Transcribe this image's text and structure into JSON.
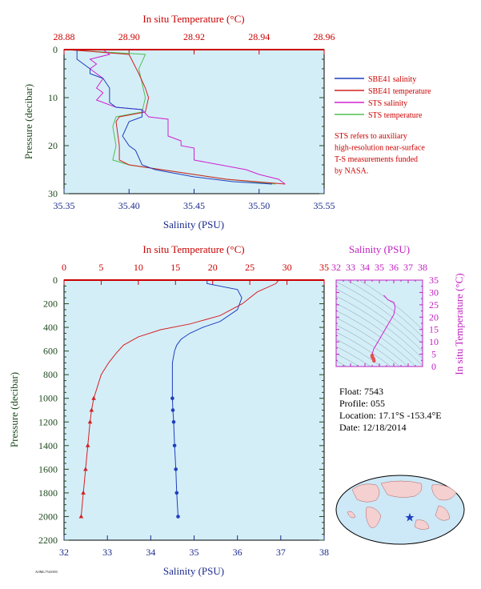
{
  "colors": {
    "temperature": "#cc0000",
    "salinity_axis": "#1a2a8a",
    "pressure_axis": "#1e4a1e",
    "sbe_salinity": "#1f3fbf",
    "sbe_temperature": "#d42020",
    "sts_salinity": "#d020d0",
    "sts_temperature": "#50c050",
    "plot_bg": "#d4eef8",
    "magenta": "#c020c0"
  },
  "top_plot": {
    "top_axis_label": "In situ Temperature (°C)",
    "bottom_axis_label": "Salinity (PSU)",
    "left_axis_label": "Pressure (decibar)",
    "temp_ticks": [
      "28.88",
      "28.90",
      "28.92",
      "28.94",
      "28.96"
    ],
    "sal_ticks": [
      "35.35",
      "35.40",
      "35.45",
      "35.50",
      "35.55"
    ],
    "pres_ticks": [
      "0",
      "10",
      "20",
      "30"
    ],
    "legend": [
      {
        "label": "SBE41 salinity",
        "color": "#1f3fbf"
      },
      {
        "label": "SBE41 temperature",
        "color": "#d42020"
      },
      {
        "label": "STS salinity",
        "color": "#d020d0"
      },
      {
        "label": "STS temperature",
        "color": "#50c050"
      }
    ],
    "note": [
      "STS refers to auxiliary",
      "high-resolution near-surface",
      "T-S measurements funded",
      "by NASA."
    ]
  },
  "bottom_plot": {
    "top_axis_label": "In situ Temperature (°C)",
    "bottom_axis_label": "Salinity (PSU)",
    "left_axis_label": "Pressure (decibar)",
    "temp_ticks": [
      "0",
      "5",
      "10",
      "15",
      "20",
      "25",
      "30",
      "35"
    ],
    "sal_ticks": [
      "32",
      "33",
      "34",
      "35",
      "36",
      "37",
      "38"
    ],
    "pres_ticks": [
      "0",
      "200",
      "400",
      "600",
      "800",
      "1000",
      "1200",
      "1400",
      "1600",
      "1800",
      "2000",
      "2200"
    ]
  },
  "ts_plot": {
    "top_axis_label": "Salinity (PSU)",
    "right_axis_label": "In situ Temperature (°C)",
    "sal_ticks": [
      "32",
      "33",
      "34",
      "35",
      "36",
      "37",
      "38"
    ],
    "temp_ticks": [
      "0",
      "5",
      "10",
      "15",
      "20",
      "25",
      "30",
      "35"
    ]
  },
  "info": {
    "float": "Float:  7543",
    "profile": "Profile:  055",
    "location": "Location:  17.1°S  -153.4°E",
    "date": "Date:  12/18/2014"
  },
  "footer_code": "AOML/7543/055",
  "chart_data": [
    {
      "type": "line",
      "title": "",
      "xlabel": "Salinity (PSU)",
      "x2label": "In situ Temperature (°C)",
      "ylabel": "Pressure (decibar)",
      "xlim": [
        35.35,
        35.55
      ],
      "x2lim": [
        28.88,
        28.96
      ],
      "ylim": [
        30,
        0
      ],
      "series": [
        {
          "name": "SBE41 salinity",
          "axis": "salinity",
          "points": [
            [
              35.36,
              0
            ],
            [
              35.36,
              2
            ],
            [
              35.37,
              4
            ],
            [
              35.37,
              5
            ],
            [
              35.38,
              6
            ],
            [
              35.385,
              8
            ],
            [
              35.385,
              11
            ],
            [
              35.39,
              12
            ],
            [
              35.41,
              12.5
            ],
            [
              35.41,
              14
            ],
            [
              35.4,
              15
            ],
            [
              35.395,
              18
            ],
            [
              35.4,
              20
            ],
            [
              35.405,
              21
            ],
            [
              35.41,
              24
            ],
            [
              35.42,
              25
            ],
            [
              35.45,
              26.5
            ],
            [
              35.48,
              27.5
            ],
            [
              35.51,
              28
            ]
          ]
        },
        {
          "name": "SBE41 temperature",
          "axis": "temperature",
          "points": [
            [
              28.881,
              0
            ],
            [
              28.9,
              1
            ],
            [
              28.903,
              5
            ],
            [
              28.905,
              8
            ],
            [
              28.906,
              10
            ],
            [
              28.905,
              13
            ],
            [
              28.897,
              14
            ],
            [
              28.896,
              15
            ],
            [
              28.897,
              20
            ],
            [
              28.897,
              23
            ],
            [
              28.9,
              24
            ],
            [
              28.91,
              25
            ],
            [
              28.93,
              27
            ],
            [
              28.948,
              28
            ]
          ]
        },
        {
          "name": "STS salinity",
          "axis": "salinity",
          "points": [
            [
              35.38,
              0
            ],
            [
              35.385,
              1
            ],
            [
              35.37,
              2
            ],
            [
              35.375,
              3
            ],
            [
              35.37,
              4
            ],
            [
              35.38,
              6
            ],
            [
              35.375,
              8
            ],
            [
              35.38,
              9
            ],
            [
              35.375,
              10.5
            ],
            [
              35.38,
              11
            ],
            [
              35.385,
              11.5
            ],
            [
              35.39,
              12
            ],
            [
              35.41,
              12.5
            ],
            [
              35.415,
              14
            ],
            [
              35.43,
              14.5
            ],
            [
              35.43,
              18
            ],
            [
              35.44,
              19
            ],
            [
              35.44,
              20
            ],
            [
              35.45,
              20.5
            ],
            [
              35.45,
              23
            ],
            [
              35.47,
              24
            ],
            [
              35.49,
              25
            ],
            [
              35.5,
              26
            ],
            [
              35.515,
              27
            ],
            [
              35.52,
              28
            ]
          ]
        },
        {
          "name": "STS temperature",
          "axis": "temperature",
          "points": [
            [
              28.88,
              0
            ],
            [
              28.905,
              1
            ],
            [
              28.903,
              4
            ],
            [
              28.904,
              7
            ],
            [
              28.905,
              10
            ],
            [
              28.904,
              13
            ],
            [
              28.896,
              14
            ],
            [
              28.895,
              16
            ],
            [
              28.896,
              20
            ],
            [
              28.895,
              23
            ],
            [
              28.9,
              24
            ],
            [
              28.91,
              25
            ],
            [
              28.93,
              27
            ],
            [
              28.945,
              28
            ]
          ]
        }
      ]
    },
    {
      "type": "line",
      "title": "",
      "xlabel": "Salinity (PSU)",
      "x2label": "In situ Temperature (°C)",
      "ylabel": "Pressure (decibar)",
      "xlim": [
        32,
        38
      ],
      "x2lim": [
        0,
        35
      ],
      "ylim": [
        2200,
        0
      ],
      "series": [
        {
          "name": "",
          "axis": "salinity",
          "points": [
            [
              35.3,
              0
            ],
            [
              35.3,
              30
            ],
            [
              36.0,
              80
            ],
            [
              36.1,
              150
            ],
            [
              36.0,
              250
            ],
            [
              35.6,
              350
            ],
            [
              35.2,
              400
            ],
            [
              34.9,
              450
            ],
            [
              34.7,
              500
            ],
            [
              34.6,
              550
            ],
            [
              34.55,
              600
            ],
            [
              34.5,
              700
            ],
            [
              34.5,
              800
            ],
            [
              34.5,
              900
            ],
            [
              34.5,
              1000
            ],
            [
              34.51,
              1100
            ],
            [
              34.53,
              1200
            ],
            [
              34.55,
              1400
            ],
            [
              34.58,
              1600
            ],
            [
              34.6,
              1800
            ],
            [
              34.63,
              2000
            ]
          ]
        },
        {
          "name": "",
          "axis": "temperature",
          "points": [
            [
              28.9,
              0
            ],
            [
              28.5,
              30
            ],
            [
              26,
              100
            ],
            [
              24,
              200
            ],
            [
              21,
              300
            ],
            [
              17,
              370
            ],
            [
              13,
              420
            ],
            [
              10,
              480
            ],
            [
              8,
              550
            ],
            [
              7,
              620
            ],
            [
              6,
              700
            ],
            [
              5,
              800
            ],
            [
              4.5,
              900
            ],
            [
              4.0,
              1000
            ],
            [
              3.7,
              1100
            ],
            [
              3.5,
              1200
            ],
            [
              3.2,
              1400
            ],
            [
              2.9,
              1600
            ],
            [
              2.6,
              1800
            ],
            [
              2.3,
              2000
            ]
          ]
        }
      ],
      "markers_from_pressure": 1000
    },
    {
      "type": "scatter",
      "title": "",
      "xlabel": "Salinity (PSU)",
      "ylabel": "In situ Temperature (°C)",
      "xlim": [
        32,
        38
      ],
      "ylim": [
        0,
        35
      ],
      "points": [
        [
          35.3,
          28.9
        ],
        [
          35.6,
          27
        ],
        [
          36.0,
          26
        ],
        [
          36.1,
          24
        ],
        [
          36.0,
          21
        ],
        [
          35.6,
          17
        ],
        [
          35.2,
          13
        ],
        [
          34.9,
          10
        ],
        [
          34.7,
          8
        ],
        [
          34.6,
          7
        ],
        [
          34.55,
          6
        ],
        [
          34.5,
          5
        ],
        [
          34.5,
          4.5
        ],
        [
          34.5,
          4
        ],
        [
          34.55,
          3.5
        ],
        [
          34.6,
          3
        ],
        [
          34.63,
          2.3
        ]
      ]
    }
  ]
}
